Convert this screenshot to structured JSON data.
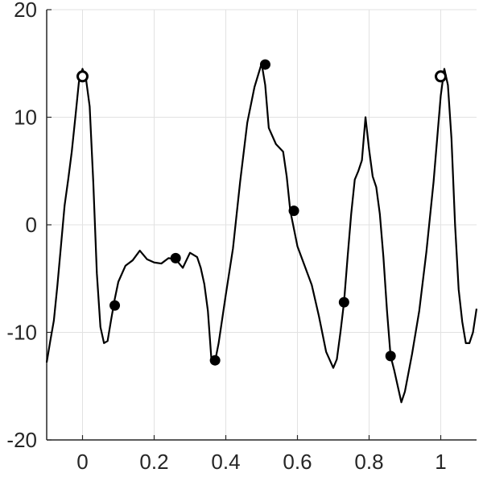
{
  "chart_data": {
    "type": "line",
    "title": "",
    "xlabel": "",
    "ylabel": "",
    "xlim": [
      -0.1,
      1.1
    ],
    "ylim": [
      -20,
      20
    ],
    "grid": true,
    "x_ticks": [
      0,
      0.2,
      0.4,
      0.6,
      0.8,
      1
    ],
    "x_tick_labels": [
      "0",
      "0.2",
      "0.4",
      "0.6",
      "0.8",
      "1"
    ],
    "y_ticks": [
      -20,
      -10,
      0,
      10,
      20
    ],
    "y_tick_labels": [
      "-20",
      "-10",
      "0",
      "10",
      "20"
    ],
    "line_color": "#000000",
    "series": [
      {
        "x": [
          -0.1,
          -0.09,
          -0.08,
          -0.07,
          -0.06,
          -0.05,
          -0.04,
          -0.03,
          -0.02,
          -0.01,
          0.0,
          0.01,
          0.02,
          0.03,
          0.04,
          0.05,
          0.06,
          0.07,
          0.08,
          0.09,
          0.1,
          0.12,
          0.14,
          0.16,
          0.18,
          0.2,
          0.22,
          0.24,
          0.26,
          0.28,
          0.3,
          0.32,
          0.33,
          0.34,
          0.35,
          0.36,
          0.37,
          0.38,
          0.4,
          0.42,
          0.44,
          0.46,
          0.48,
          0.5,
          0.51,
          0.52,
          0.54,
          0.56,
          0.57,
          0.58,
          0.6,
          0.62,
          0.64,
          0.66,
          0.68,
          0.7,
          0.71,
          0.72,
          0.73,
          0.74,
          0.75,
          0.76,
          0.77,
          0.78,
          0.79,
          0.8,
          0.81,
          0.82,
          0.83,
          0.84,
          0.85,
          0.86,
          0.87,
          0.88,
          0.89,
          0.9,
          0.92,
          0.94,
          0.96,
          0.98,
          1.0,
          1.01,
          1.02,
          1.03,
          1.04,
          1.05,
          1.06,
          1.07,
          1.08,
          1.09,
          1.1
        ],
        "y": [
          -12.8,
          -10.8,
          -8.9,
          -5.6,
          -1.9,
          1.8,
          4.2,
          6.8,
          10.0,
          13.3,
          14.5,
          13.5,
          11.0,
          4.0,
          -4.5,
          -9.5,
          -11.0,
          -10.8,
          -8.8,
          -6.9,
          -5.3,
          -3.8,
          -3.3,
          -2.4,
          -3.2,
          -3.5,
          -3.6,
          -3.1,
          -3.2,
          -4.0,
          -2.6,
          -3.0,
          -4.0,
          -5.5,
          -8.0,
          -12.6,
          -12.7,
          -11.0,
          -6.5,
          -2.2,
          4.0,
          9.5,
          12.8,
          15.0,
          13.0,
          9.0,
          7.5,
          6.8,
          4.5,
          1.3,
          -2.0,
          -3.8,
          -5.6,
          -8.5,
          -11.8,
          -13.3,
          -12.5,
          -10.0,
          -7.2,
          -3.0,
          1.0,
          4.2,
          5.0,
          6.0,
          10.0,
          7.0,
          4.5,
          3.5,
          1.0,
          -3.0,
          -8.0,
          -12.2,
          -13.5,
          -15.0,
          -16.5,
          -15.5,
          -12.0,
          -8.0,
          -2.5,
          4.0,
          12.0,
          14.5,
          13.0,
          8.0,
          0.0,
          -6.0,
          -9.0,
          -11.0,
          -11.0,
          -10.0,
          -7.8
        ]
      }
    ],
    "markers": {
      "filled": [
        {
          "x": 0.09,
          "y": -7.5
        },
        {
          "x": 0.26,
          "y": -3.1
        },
        {
          "x": 0.37,
          "y": -12.6
        },
        {
          "x": 0.51,
          "y": 14.9
        },
        {
          "x": 0.59,
          "y": 1.3
        },
        {
          "x": 0.73,
          "y": -7.2
        },
        {
          "x": 0.86,
          "y": -12.2
        }
      ],
      "hollow": [
        {
          "x": 0.0,
          "y": 13.8
        },
        {
          "x": 1.0,
          "y": 13.8
        }
      ]
    }
  }
}
